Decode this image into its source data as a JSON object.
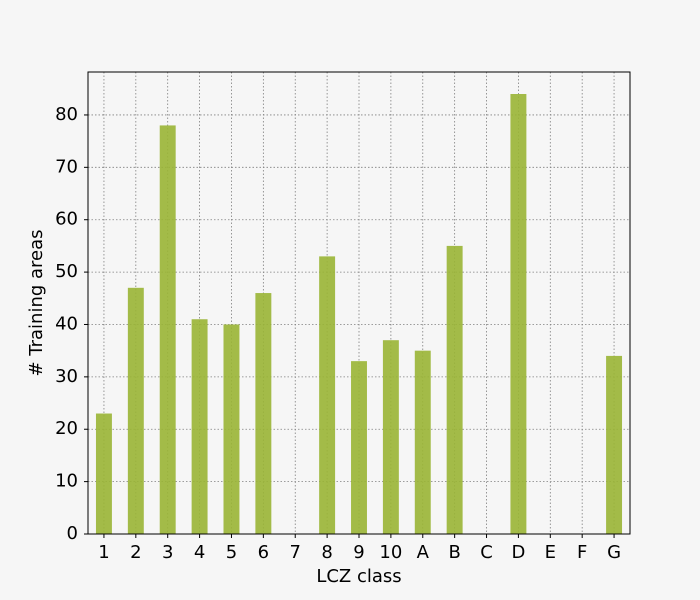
{
  "chart_data": {
    "type": "bar",
    "x_label": "LCZ class",
    "y_label": "# Training areas",
    "categories": [
      "1",
      "2",
      "3",
      "4",
      "5",
      "6",
      "7",
      "8",
      "9",
      "10",
      "A",
      "B",
      "C",
      "D",
      "E",
      "F",
      "G"
    ],
    "values": [
      23,
      47,
      78,
      41,
      40,
      46,
      0,
      53,
      33,
      37,
      35,
      55,
      0,
      84,
      0,
      0,
      34
    ],
    "color": "#9ab535",
    "ylim": [
      0,
      88.2
    ],
    "yticks": [
      0,
      10,
      20,
      30,
      40,
      50,
      60,
      70,
      80
    ],
    "grid": true
  }
}
